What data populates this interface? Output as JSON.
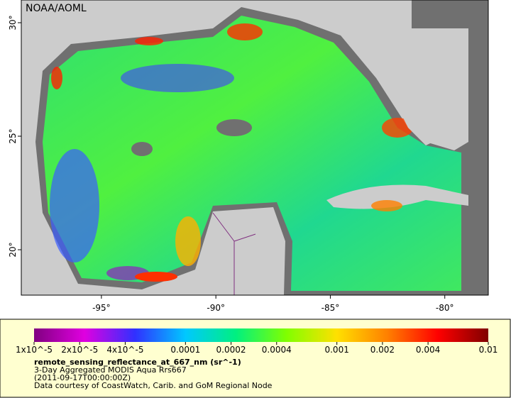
{
  "map": {
    "credit": "NOAA/AOML",
    "lon_range": [
      -98.5,
      -78.1
    ],
    "lat_range": [
      18,
      31
    ],
    "lon_ticks": [
      {
        "value": -95,
        "label": "-95°"
      },
      {
        "value": -90,
        "label": "-90°"
      },
      {
        "value": -85,
        "label": "-85°"
      },
      {
        "value": -80,
        "label": "-80°"
      }
    ],
    "lat_ticks": [
      {
        "value": 20,
        "label": "20°"
      },
      {
        "value": 25,
        "label": "25°"
      },
      {
        "value": 30,
        "label": "30°"
      }
    ]
  },
  "colorbar": {
    "scale": "log",
    "range": [
      1e-05,
      0.01
    ],
    "colors": [
      "#800080",
      "#e000e0",
      "#3030ff",
      "#00c8ff",
      "#00f080",
      "#80ff00",
      "#ffe000",
      "#ff8000",
      "#ff0000",
      "#800000"
    ],
    "ticks": [
      {
        "value": 1e-05,
        "label": "1x10^-5"
      },
      {
        "value": 2e-05,
        "label": "2x10^-5"
      },
      {
        "value": 4e-05,
        "label": "4x10^-5"
      },
      0.0001,
      0.0002,
      0.0004,
      0.001,
      0.002,
      0.004,
      0.01
    ]
  },
  "caption": {
    "variable": "remote_sensing_reflectance_at_667_nm (sr^-1)",
    "product": "3-Day Aggregated MODIS Aqua Rrs667",
    "time": "(2011-09-17T00:00:00Z)",
    "credit": "Data courtesy of CoastWatch, Carib. and GoM Regional Node"
  }
}
